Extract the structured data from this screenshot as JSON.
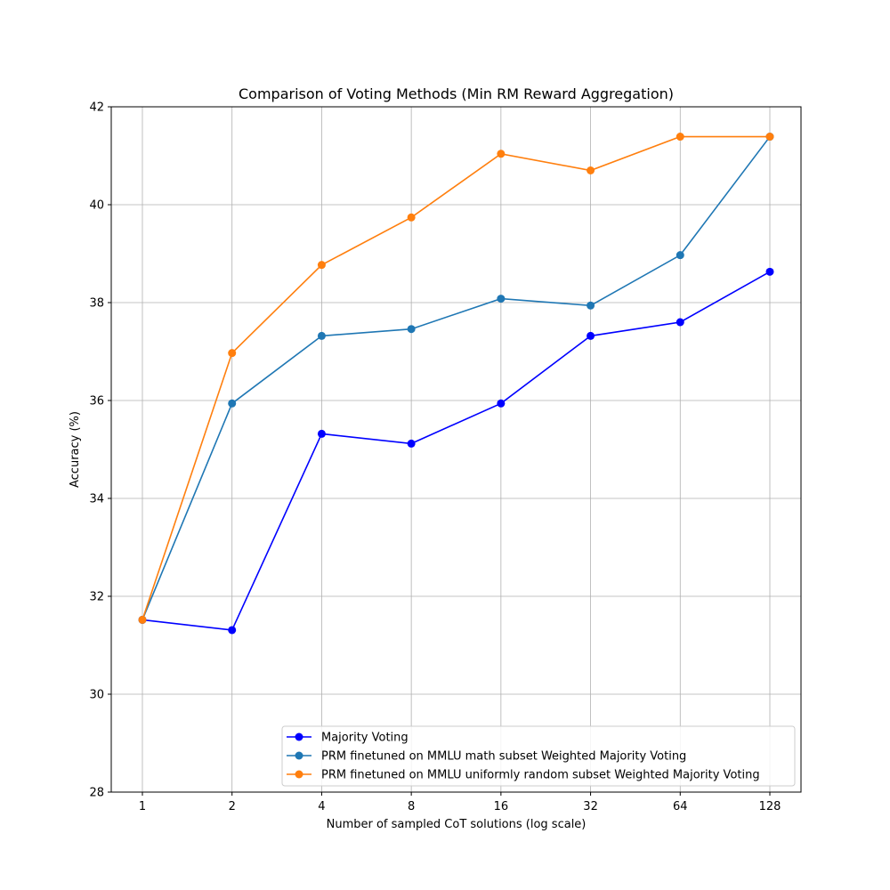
{
  "chart_data": {
    "type": "line",
    "title": "Comparison of Voting Methods (Min RM Reward Aggregation)",
    "xlabel": "Number of sampled CoT solutions (log scale)",
    "ylabel": "Accuracy (%)",
    "x_scale": "log2",
    "x": [
      1,
      2,
      4,
      8,
      16,
      32,
      64,
      128
    ],
    "x_tick_labels": [
      "1",
      "2",
      "4",
      "8",
      "16",
      "32",
      "64",
      "128"
    ],
    "y_ticks": [
      28,
      30,
      32,
      34,
      36,
      38,
      40,
      42
    ],
    "y_tick_labels": [
      "28",
      "30",
      "32",
      "34",
      "36",
      "38",
      "40",
      "42"
    ],
    "ylim": [
      28,
      42
    ],
    "grid": true,
    "legend_position": "lower-right",
    "series": [
      {
        "name": "Majority Voting",
        "color": "#0000ff",
        "values": [
          31.52,
          31.31,
          35.32,
          35.12,
          35.94,
          37.32,
          37.6,
          38.63
        ]
      },
      {
        "name": "PRM finetuned on MMLU math subset Weighted Majority Voting",
        "color": "#1f77b4",
        "values": [
          31.52,
          35.94,
          37.32,
          37.46,
          38.08,
          37.94,
          38.97,
          41.39
        ]
      },
      {
        "name": "PRM finetuned on MMLU uniformly random subset Weighted Majority Voting",
        "color": "#ff7f0e",
        "values": [
          31.52,
          36.97,
          38.77,
          39.74,
          41.04,
          40.7,
          41.39,
          41.39
        ]
      }
    ]
  }
}
